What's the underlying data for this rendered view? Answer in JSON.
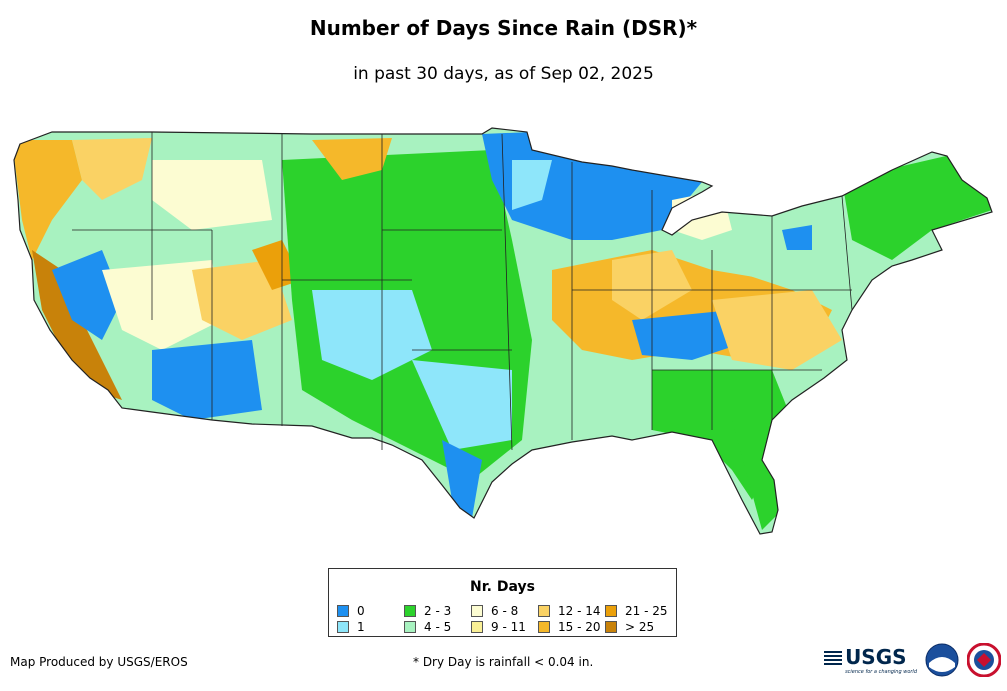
{
  "header": {
    "title": "Number of Days Since Rain (DSR)*",
    "subtitle": "in past 30 days, as of Sep 02, 2025"
  },
  "legend": {
    "title": "Nr. Days",
    "items": [
      {
        "label": "0",
        "color": "#1e90f0"
      },
      {
        "label": "1",
        "color": "#8ee6fa"
      },
      {
        "label": "2 - 3",
        "color": "#2cd22c"
      },
      {
        "label": "4 - 5",
        "color": "#a8f2c0"
      },
      {
        "label": "6 - 8",
        "color": "#fcfcd2"
      },
      {
        "label": "9 - 11",
        "color": "#faf096"
      },
      {
        "label": "12 - 14",
        "color": "#fad264"
      },
      {
        "label": "15 - 20",
        "color": "#f5b82a"
      },
      {
        "label": "21 - 25",
        "color": "#eba00a"
      },
      {
        "label": "> 25",
        "color": "#c8820a"
      }
    ]
  },
  "footer": {
    "credit": "Map Produced by USGS/EROS",
    "footnote": "* Dry Day is rainfall < 0.04 in.",
    "logos": {
      "usgs": "USGS",
      "usgs_tagline": "science for a changing world"
    }
  }
}
